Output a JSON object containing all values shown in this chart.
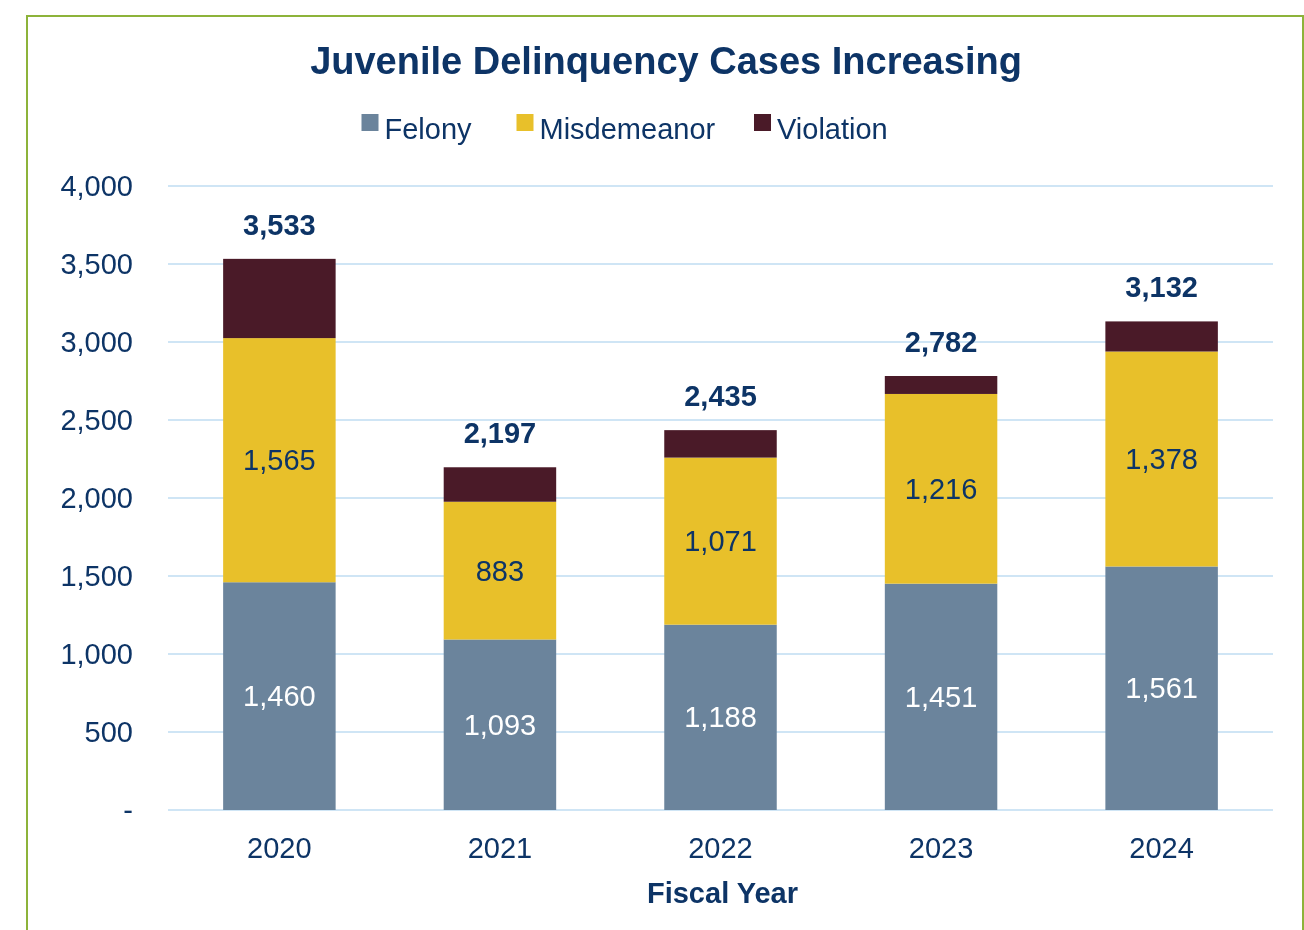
{
  "chart_data": {
    "type": "bar",
    "title": "Juvenile Delinquency Cases Increasing",
    "xlabel": "Fiscal Year",
    "categories": [
      "2020",
      "2021",
      "2022",
      "2023",
      "2024"
    ],
    "stacked": true,
    "series": [
      {
        "name": "Felony",
        "color": "#6b849c",
        "values": [
          1460,
          1093,
          1188,
          1451,
          1561
        ],
        "value_labels": [
          "1,460",
          "1,093",
          "1,188",
          "1,451",
          "1,561"
        ]
      },
      {
        "name": "Misdemeanor",
        "color": "#e8c02a",
        "values": [
          1565,
          883,
          1071,
          1216,
          1378
        ],
        "value_labels": [
          "1,565",
          "883",
          "1,071",
          "1,216",
          "1,378"
        ]
      },
      {
        "name": "Violation",
        "color": "#4a1a28",
        "values": [
          508,
          221,
          176,
          115,
          193
        ]
      }
    ],
    "totals": [
      "3,533",
      "2,197",
      "2,435",
      "2,782",
      "3,132"
    ],
    "ylim": [
      0,
      4000
    ],
    "yticks": [
      {
        "value": 0,
        "label": "-"
      },
      500,
      {
        "value": 1000,
        "label": "1,000"
      },
      {
        "value": 1500,
        "label": "1,500"
      },
      {
        "value": 2000,
        "label": "2,000"
      },
      {
        "value": 2500,
        "label": "2,500"
      },
      {
        "value": 3000,
        "label": "3,000"
      },
      {
        "value": 3500,
        "label": "3,500"
      },
      {
        "value": 4000,
        "label": "4,000"
      }
    ],
    "grid": "y",
    "legend": "top"
  }
}
